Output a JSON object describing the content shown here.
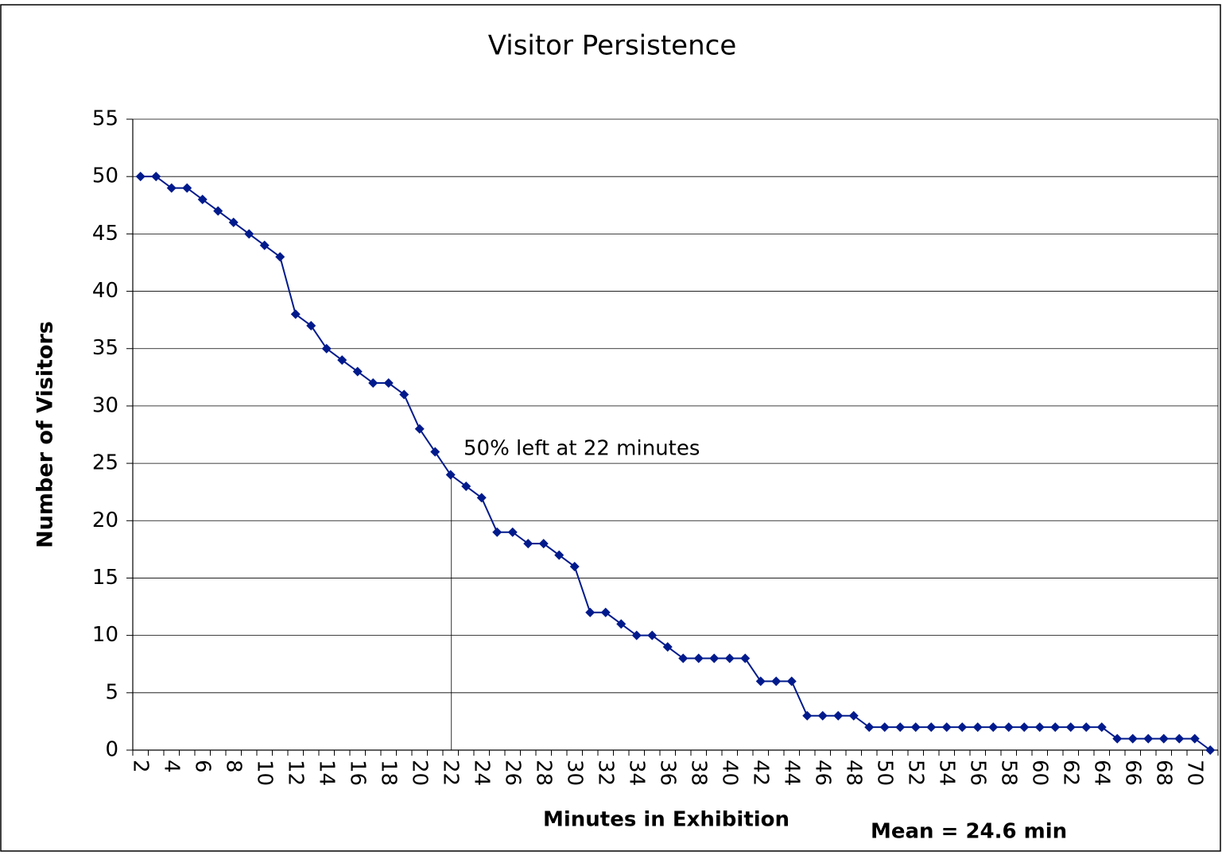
{
  "chart_data": {
    "type": "line",
    "title": "Visitor Persistence",
    "xlabel": "Minutes in Exhibition",
    "ylabel": "Number of Visitors",
    "annotations": [
      "50% left at 22 minutes",
      "Mean = 24.6 min"
    ],
    "categories": [
      2,
      null,
      4,
      null,
      6,
      null,
      8,
      null,
      10,
      null,
      12,
      null,
      14,
      null,
      16,
      null,
      18,
      null,
      20,
      null,
      22,
      null,
      24,
      null,
      26,
      null,
      28,
      null,
      30,
      null,
      32,
      null,
      34,
      null,
      36,
      null,
      38,
      null,
      40,
      null,
      42,
      null,
      44,
      null,
      46,
      null,
      48,
      null,
      50,
      null,
      52,
      null,
      54,
      null,
      56,
      null,
      58,
      null,
      60,
      null,
      62,
      null,
      64,
      null,
      66,
      null,
      68,
      null,
      70,
      null
    ],
    "series": [
      {
        "name": "Visitors",
        "color": "#001a8c",
        "values": [
          50,
          50,
          49,
          49,
          48,
          47,
          46,
          45,
          44,
          43,
          38,
          37,
          35,
          34,
          33,
          32,
          32,
          31,
          28,
          26,
          24,
          23,
          22,
          19,
          19,
          18,
          18,
          17,
          16,
          12,
          12,
          11,
          10,
          10,
          9,
          8,
          8,
          8,
          8,
          8,
          6,
          6,
          6,
          3,
          3,
          3,
          3,
          2,
          2,
          2,
          2,
          2,
          2,
          2,
          2,
          2,
          2,
          2,
          2,
          2,
          2,
          2,
          2,
          1,
          1,
          1,
          1,
          1,
          1,
          0
        ]
      }
    ],
    "ylim": [
      0,
      55
    ],
    "yticks": [
      0,
      5,
      10,
      15,
      20,
      25,
      30,
      35,
      40,
      45,
      50,
      55
    ],
    "grid": true
  }
}
